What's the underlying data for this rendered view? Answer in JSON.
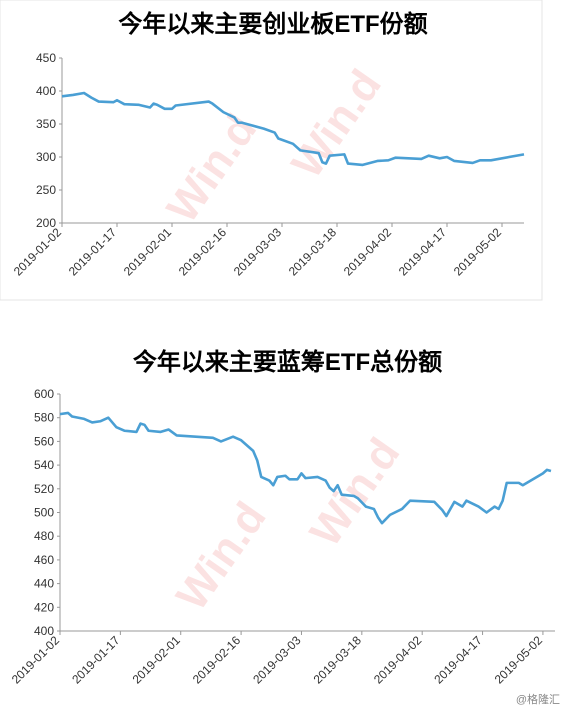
{
  "chart_data": [
    {
      "type": "line",
      "title": "今年以来主要创业板ETF份额",
      "watermark": "Win.d",
      "x": [
        "2019-01-02",
        "2019-01-05",
        "2019-01-08",
        "2019-01-10",
        "2019-01-12",
        "2019-01-16",
        "2019-01-17",
        "2019-01-19",
        "2019-01-23",
        "2019-01-26",
        "2019-01-27",
        "2019-01-28",
        "2019-01-30",
        "2019-02-01",
        "2019-02-02",
        "2019-02-11",
        "2019-02-12",
        "2019-02-15",
        "2019-02-18",
        "2019-02-19",
        "2019-02-20",
        "2019-02-22",
        "2019-02-26",
        "2019-03-01",
        "2019-03-02",
        "2019-03-06",
        "2019-03-08",
        "2019-03-13",
        "2019-03-14",
        "2019-03-15",
        "2019-03-16",
        "2019-03-20",
        "2019-03-21",
        "2019-03-25",
        "2019-03-29",
        "2019-04-01",
        "2019-04-03",
        "2019-04-10",
        "2019-04-12",
        "2019-04-15",
        "2019-04-17",
        "2019-04-19",
        "2019-04-24",
        "2019-04-26",
        "2019-04-29",
        "2019-05-08"
      ],
      "series": [
        {
          "color": "#4a9fd4",
          "values": [
            392,
            394,
            397,
            390,
            384,
            383,
            386,
            380,
            379,
            375,
            381,
            379,
            373,
            373,
            378,
            384,
            381,
            368,
            360,
            352,
            352,
            349,
            343,
            337,
            328,
            320,
            310,
            306,
            292,
            290,
            302,
            304,
            290,
            288,
            294,
            295,
            299,
            297,
            302,
            298,
            300,
            294,
            291,
            295,
            295,
            304
          ]
        }
      ],
      "xlim": [
        "2019-01-02",
        "2019-05-08"
      ],
      "xticks": [
        "2019-01-02",
        "2019-01-17",
        "2019-02-01",
        "2019-02-16",
        "2019-03-03",
        "2019-03-18",
        "2019-04-02",
        "2019-04-17",
        "2019-05-02"
      ],
      "ylim": [
        200,
        450
      ],
      "yticks": [
        200,
        250,
        300,
        350,
        400,
        450
      ]
    },
    {
      "type": "line",
      "title": "今年以来主要蓝筹ETF总份额",
      "watermark": "Win.d",
      "x": [
        "2019-01-02",
        "2019-01-04",
        "2019-01-05",
        "2019-01-08",
        "2019-01-10",
        "2019-01-12",
        "2019-01-14",
        "2019-01-16",
        "2019-01-18",
        "2019-01-21",
        "2019-01-22",
        "2019-01-23",
        "2019-01-24",
        "2019-01-27",
        "2019-01-29",
        "2019-01-31",
        "2019-02-09",
        "2019-02-11",
        "2019-02-14",
        "2019-02-16",
        "2019-02-19",
        "2019-02-20",
        "2019-02-21",
        "2019-02-23",
        "2019-02-24",
        "2019-02-25",
        "2019-02-27",
        "2019-02-28",
        "2019-03-02",
        "2019-03-03",
        "2019-03-04",
        "2019-03-07",
        "2019-03-09",
        "2019-03-10",
        "2019-03-11",
        "2019-03-12",
        "2019-03-13",
        "2019-03-16",
        "2019-03-17",
        "2019-03-19",
        "2019-03-21",
        "2019-03-22",
        "2019-03-23",
        "2019-03-25",
        "2019-03-28",
        "2019-03-30",
        "2019-04-05",
        "2019-04-07",
        "2019-04-08",
        "2019-04-10",
        "2019-04-12",
        "2019-04-13",
        "2019-04-16",
        "2019-04-18",
        "2019-04-20",
        "2019-04-21",
        "2019-04-22",
        "2019-04-23",
        "2019-04-26",
        "2019-04-27",
        "2019-05-02",
        "2019-05-03",
        "2019-05-04"
      ],
      "series": [
        {
          "color": "#4a9fd4",
          "values": [
            583,
            584,
            581,
            579,
            576,
            577,
            580,
            572,
            569,
            568,
            575,
            574,
            569,
            568,
            570,
            565,
            563,
            560,
            564,
            561,
            552,
            544,
            530,
            527,
            523,
            530,
            531,
            528,
            528,
            533,
            529,
            530,
            527,
            521,
            518,
            523,
            515,
            514,
            512,
            505,
            503,
            496,
            491,
            498,
            503,
            510,
            509,
            502,
            497,
            509,
            505,
            510,
            505,
            500,
            505,
            503,
            510,
            525,
            525,
            523,
            533,
            536,
            535
          ]
        }
      ],
      "xlim": [
        "2019-01-02",
        "2019-05-05"
      ],
      "xticks": [
        "2019-01-02",
        "2019-01-17",
        "2019-02-01",
        "2019-02-16",
        "2019-03-03",
        "2019-03-18",
        "2019-04-02",
        "2019-04-17",
        "2019-05-02"
      ],
      "ylim": [
        400,
        600
      ],
      "yticks": [
        400,
        420,
        440,
        460,
        480,
        500,
        520,
        540,
        560,
        580,
        600
      ]
    }
  ],
  "footer": "@格隆汇"
}
